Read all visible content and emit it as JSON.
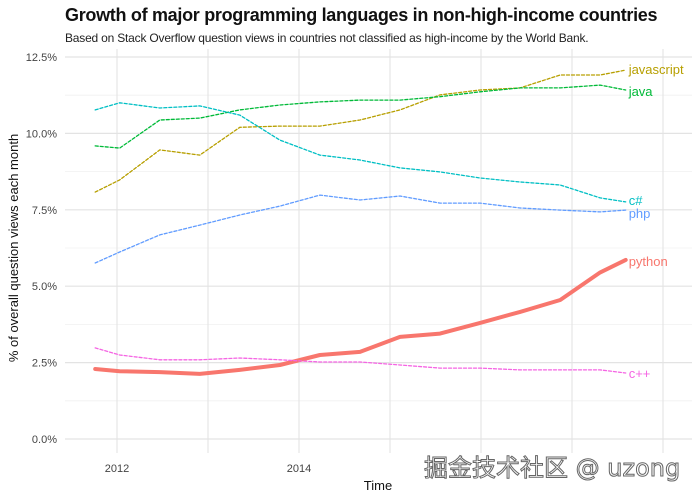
{
  "chart_data": {
    "type": "line",
    "title": "Growth of major programming languages in non-high-income countries",
    "subtitle": "Based on Stack Overflow question views in countries not classified as high-income by the World Bank.",
    "xlabel": "Time",
    "ylabel": "% of overall question views each month",
    "xlim": [
      2011.45,
      2018.3
    ],
    "ylim": [
      0,
      12.5
    ],
    "xticks": [
      {
        "value": 2012,
        "label": "2012"
      },
      {
        "value": 2014,
        "label": "2014"
      }
    ],
    "yticks": [
      {
        "value": 0,
        "label": "0.0%"
      },
      {
        "value": 2.5,
        "label": "2.5%"
      },
      {
        "value": 5,
        "label": "5.0%"
      },
      {
        "value": 7.5,
        "label": "7.5%"
      },
      {
        "value": 10,
        "label": "10.0%"
      },
      {
        "value": 12.5,
        "label": "12.5%"
      }
    ],
    "grid": true,
    "legend": "direct-labels-right",
    "x": [
      2011.76,
      2012.03,
      2012.47,
      2012.91,
      2013.35,
      2013.79,
      2014.23,
      2014.67,
      2015.11,
      2015.55,
      2015.99,
      2016.43,
      2016.87,
      2017.31,
      2017.59
    ],
    "series": [
      {
        "name": "javascript",
        "color": "#B79F00",
        "style": "dashed",
        "values": [
          8.08,
          8.48,
          9.46,
          9.29,
          10.2,
          10.24,
          10.24,
          10.44,
          10.77,
          11.26,
          11.42,
          11.49,
          11.91,
          11.91,
          12.07
        ]
      },
      {
        "name": "java",
        "color": "#00BA38",
        "style": "dashed",
        "values": [
          9.59,
          9.52,
          10.44,
          10.5,
          10.77,
          10.93,
          11.03,
          11.09,
          11.09,
          11.2,
          11.36,
          11.49,
          11.49,
          11.58,
          11.42
        ]
      },
      {
        "name": "c#",
        "color": "#00BFC4",
        "style": "dashed",
        "values": [
          10.77,
          11.0,
          10.83,
          10.9,
          10.6,
          9.78,
          9.29,
          9.13,
          8.87,
          8.74,
          8.54,
          8.41,
          8.31,
          7.89,
          7.76
        ]
      },
      {
        "name": "php",
        "color": "#619CFF",
        "style": "dashed",
        "values": [
          5.76,
          6.12,
          6.68,
          7.0,
          7.33,
          7.62,
          7.98,
          7.82,
          7.95,
          7.72,
          7.72,
          7.56,
          7.49,
          7.43,
          7.49
        ]
      },
      {
        "name": "python",
        "color": "#F8766D",
        "style": "solid",
        "values": [
          2.29,
          2.22,
          2.19,
          2.13,
          2.26,
          2.42,
          2.75,
          2.85,
          3.34,
          3.45,
          3.8,
          4.16,
          4.55,
          5.45,
          5.86
        ]
      },
      {
        "name": "c++",
        "color": "#F564E3",
        "style": "dashed",
        "values": [
          2.98,
          2.75,
          2.59,
          2.59,
          2.65,
          2.59,
          2.52,
          2.52,
          2.42,
          2.32,
          2.32,
          2.26,
          2.26,
          2.26,
          2.16
        ]
      }
    ]
  },
  "watermark": "掘金技术社区 @ uzong"
}
